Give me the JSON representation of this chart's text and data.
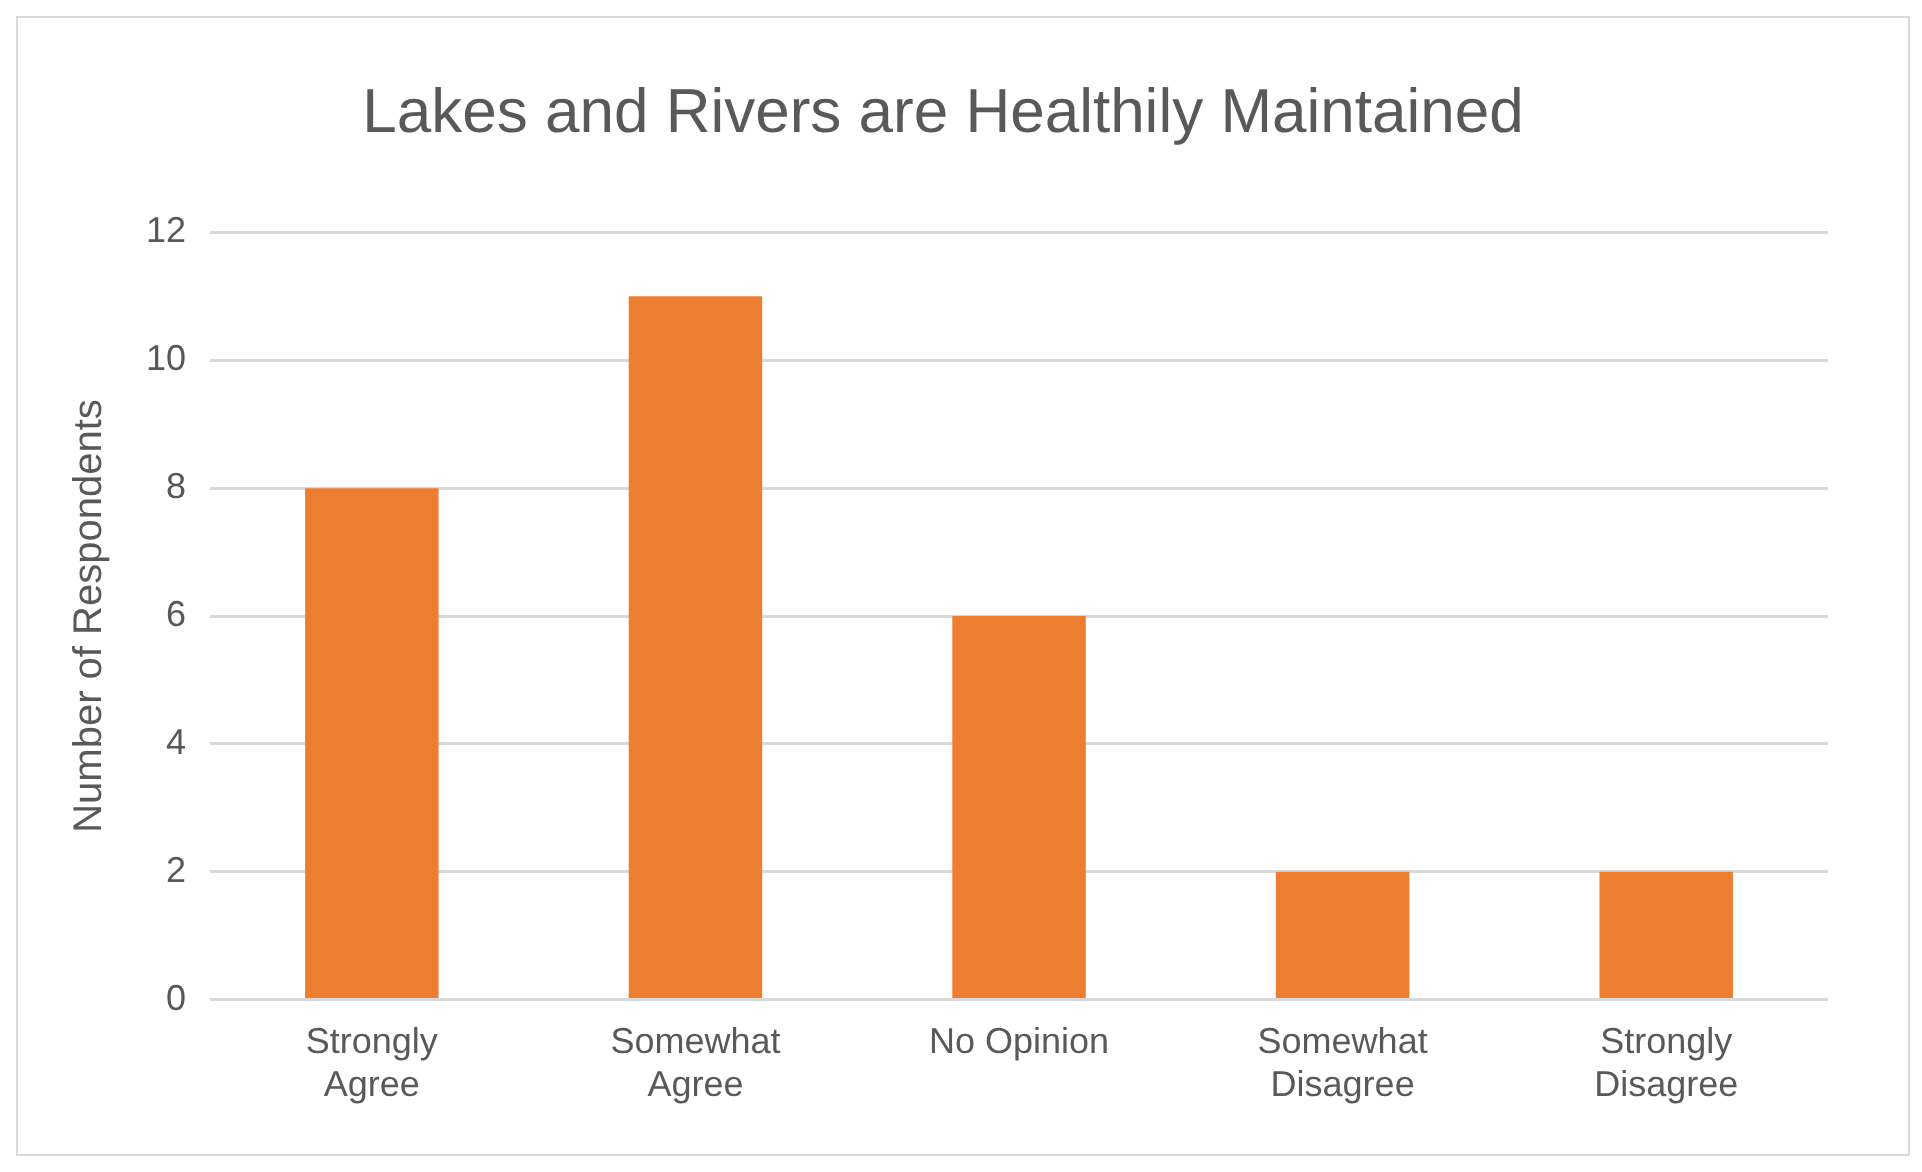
{
  "chart_data": {
    "type": "bar",
    "title": "Lakes and Rivers are Healthily Maintained",
    "ylabel": "Number of Respondents",
    "categories": [
      "Strongly Agree",
      "Somewhat Agree",
      "No Opinion",
      "Somewhat Disagree",
      "Strongly Disagree"
    ],
    "values": [
      8,
      11,
      6,
      2,
      2
    ],
    "color": "#ed7d31",
    "ylim": [
      0,
      12
    ],
    "yticks": [
      0,
      2,
      4,
      6,
      8,
      10,
      12
    ],
    "grid": "y",
    "legend": false
  }
}
